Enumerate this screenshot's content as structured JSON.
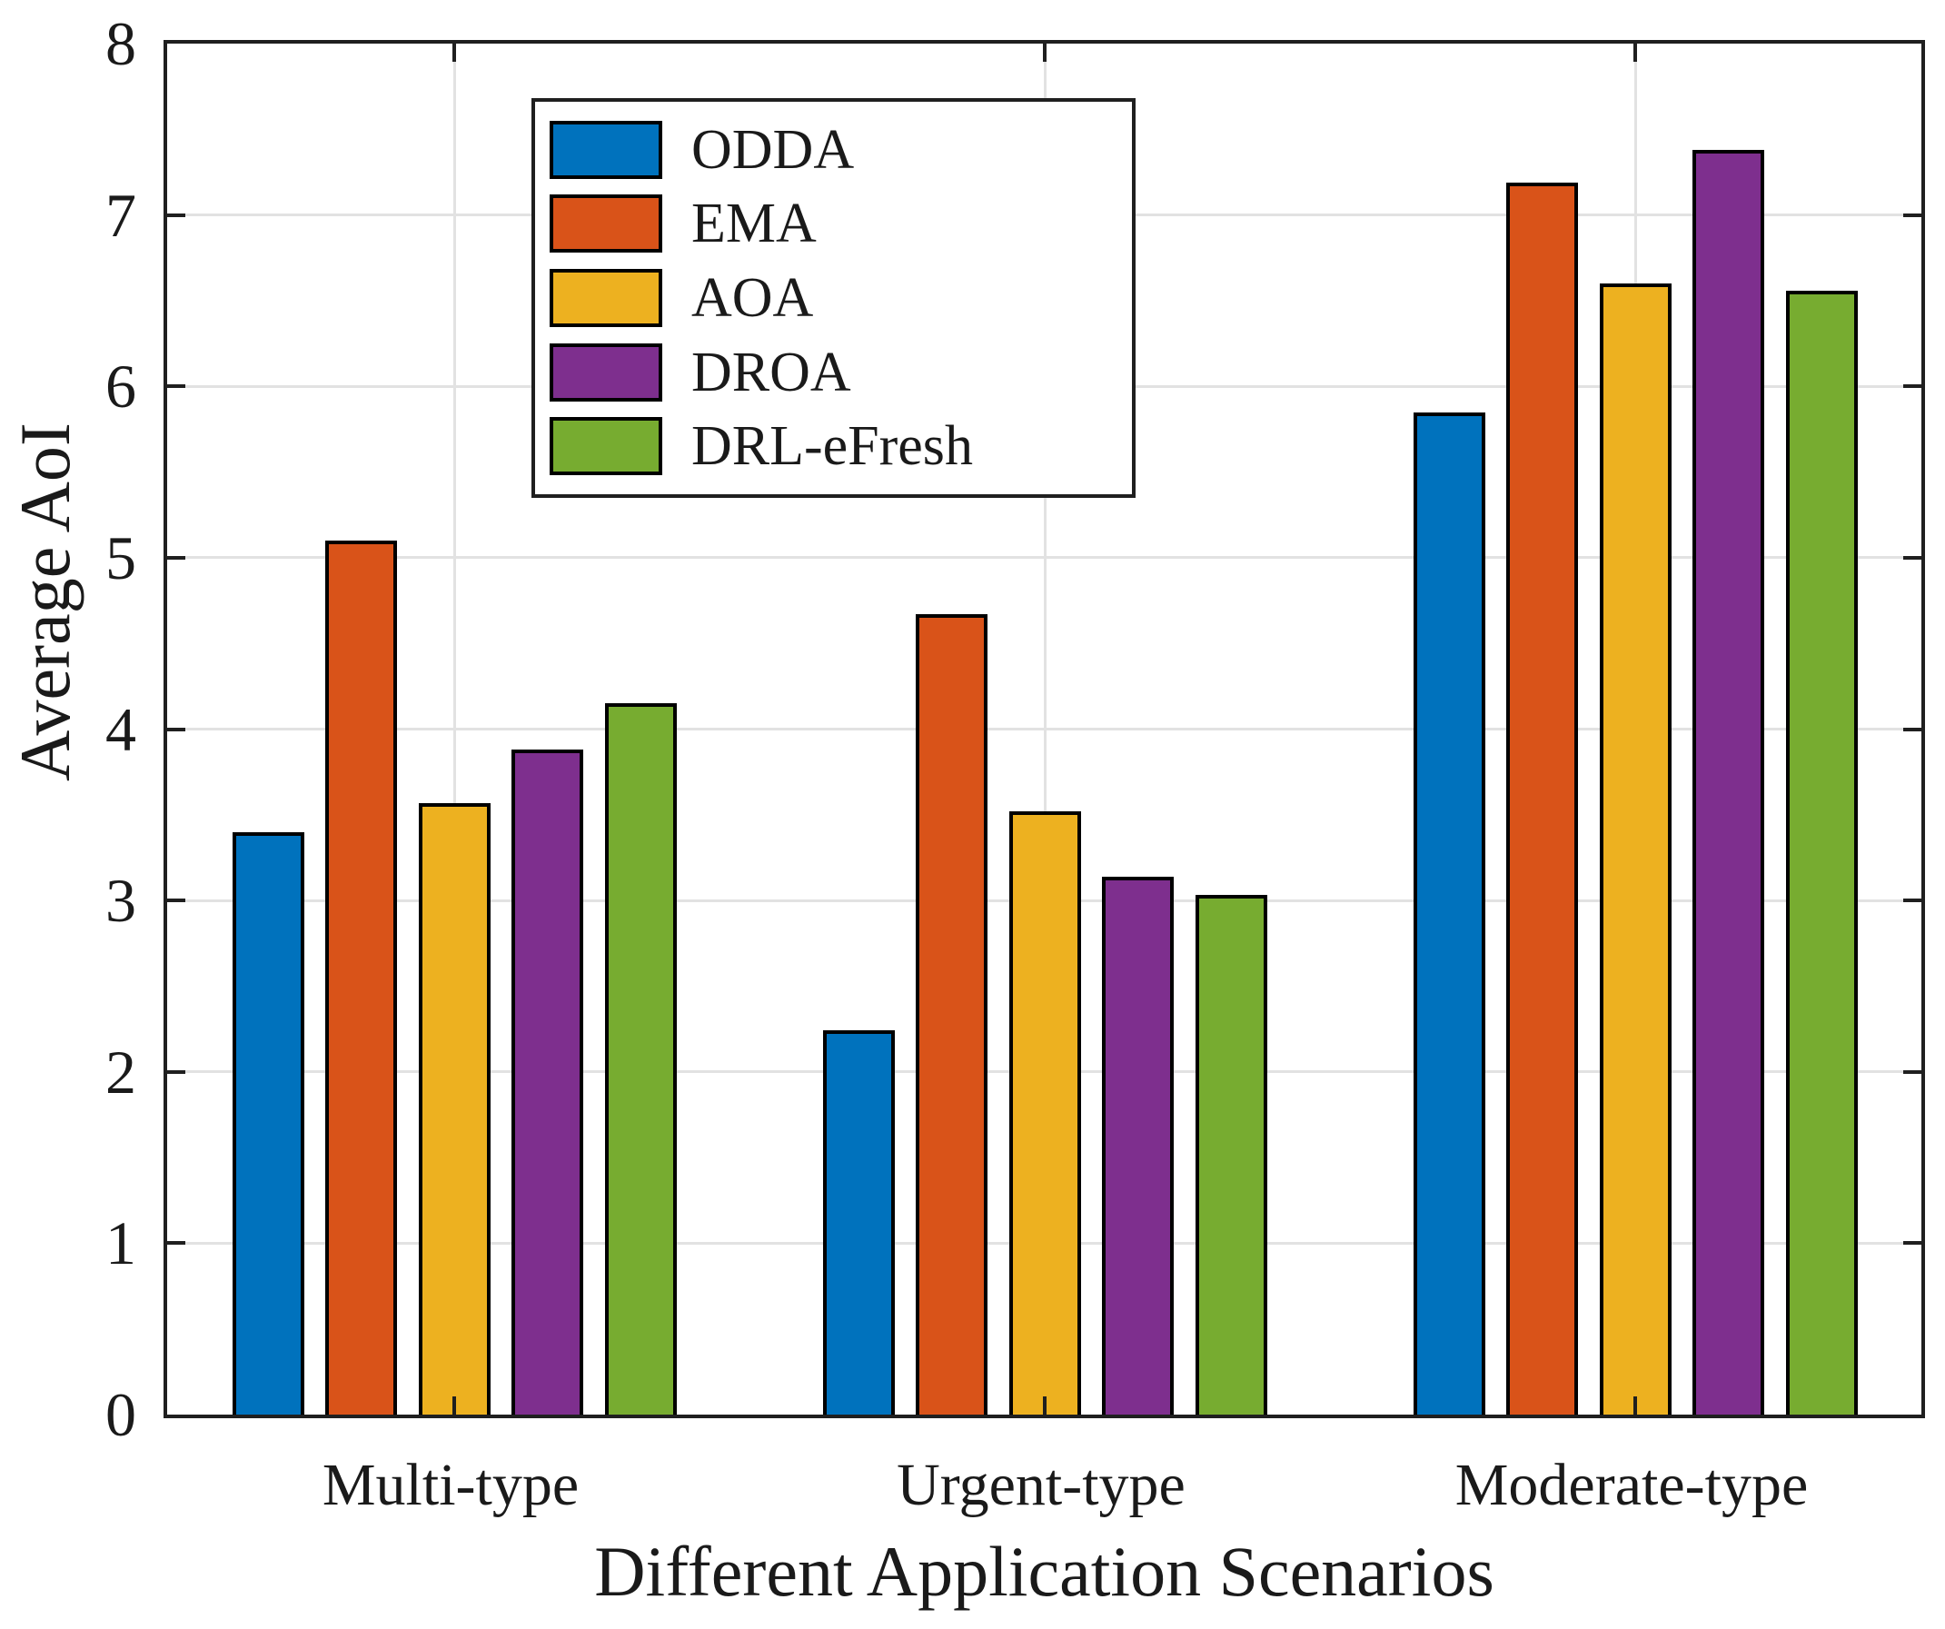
{
  "chart_data": {
    "type": "bar",
    "title": "",
    "xlabel": "Different Application Scenarios",
    "ylabel": "Average AoI",
    "categories": [
      "Multi-type",
      "Urgent-type",
      "Moderate-type"
    ],
    "series": [
      {
        "name": "ODDA",
        "color": "#0072BD",
        "values": [
          3.4,
          2.24,
          5.85
        ]
      },
      {
        "name": "EMA",
        "color": "#D95319",
        "values": [
          5.1,
          4.67,
          7.19
        ]
      },
      {
        "name": "AOA",
        "color": "#EDB120",
        "values": [
          3.57,
          3.52,
          6.6
        ]
      },
      {
        "name": "DROA",
        "color": "#7E2F8E",
        "values": [
          3.88,
          3.14,
          7.38
        ]
      },
      {
        "name": "DRL-eFresh",
        "color": "#77AC30",
        "values": [
          4.15,
          3.03,
          6.56
        ]
      }
    ],
    "ylim": [
      0,
      8
    ],
    "yticks": [
      "0",
      "1",
      "2",
      "3",
      "4",
      "5",
      "6",
      "7",
      "8"
    ],
    "grid": true,
    "legend_position": "upper-left-inside",
    "bar_edge_color": "#000000",
    "gridline_color": "#E2E2E2",
    "axis_color": "#1F1F1F"
  }
}
